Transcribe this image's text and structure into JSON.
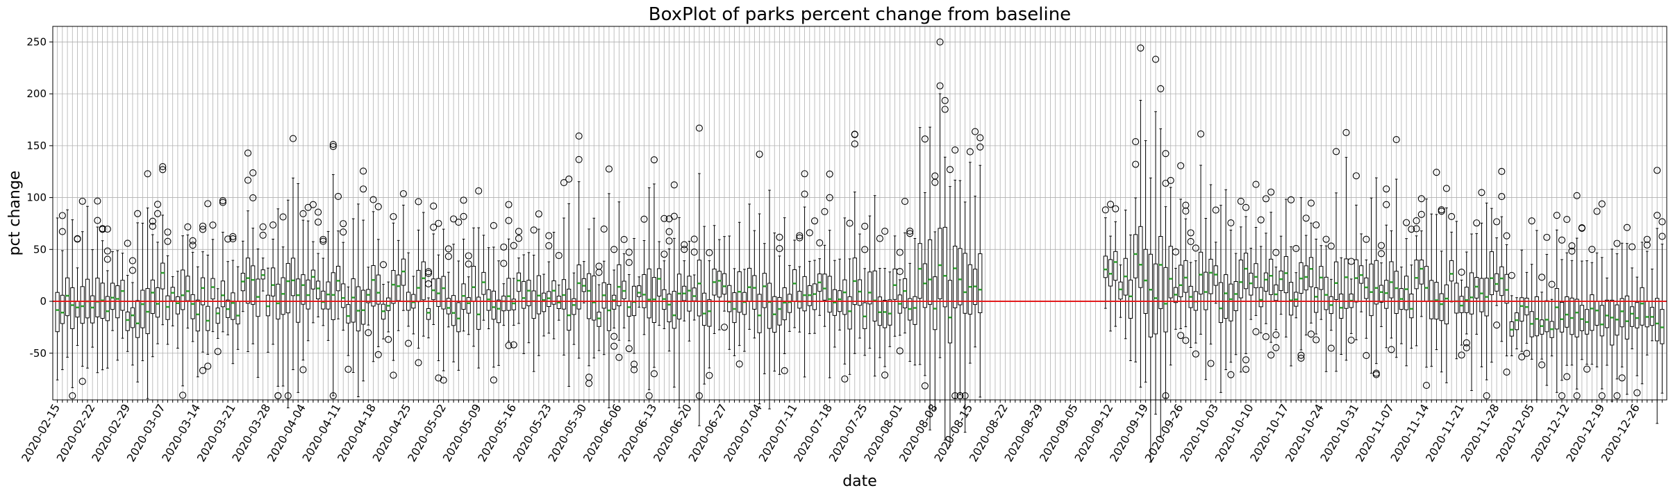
{
  "chart_data": {
    "type": "boxplot",
    "title": "BoxPlot of parks percent change from baseline",
    "xlabel": "date",
    "ylabel": "pct change",
    "ylim": [
      -95,
      265
    ],
    "yticks": [
      -50,
      0,
      50,
      100,
      150,
      200,
      250
    ],
    "x_start": "2020-02-15",
    "x_end": "2020-12-31",
    "x_tick_labels": [
      "2020-02-15",
      "2020-02-22",
      "2020-02-29",
      "2020-03-07",
      "2020-03-14",
      "2020-03-21",
      "2020-03-28",
      "2020-04-04",
      "2020-04-11",
      "2020-04-18",
      "2020-04-25",
      "2020-05-02",
      "2020-05-09",
      "2020-05-16",
      "2020-05-23",
      "2020-05-30",
      "2020-06-06",
      "2020-06-13",
      "2020-06-20",
      "2020-06-27",
      "2020-07-04",
      "2020-07-11",
      "2020-07-18",
      "2020-07-25",
      "2020-08-01",
      "2020-08-08",
      "2020-08-15",
      "2020-08-22",
      "2020-08-29",
      "2020-09-05",
      "2020-09-12",
      "2020-09-19",
      "2020-09-26",
      "2020-10-03",
      "2020-10-10",
      "2020-10-17",
      "2020-10-24",
      "2020-10-31",
      "2020-11-07",
      "2020-11-14",
      "2020-11-21",
      "2020-11-28",
      "2020-12-05",
      "2020-12-12",
      "2020-12-19",
      "2020-12-26"
    ],
    "missing_ranges": [
      [
        "2020-08-18",
        "2020-09-10"
      ]
    ],
    "baseline": 0,
    "grid": true,
    "colors": {
      "baseline": "#e31a1c",
      "median": "#2ca02c",
      "box": "#000000",
      "grid": "#b0b0b0"
    }
  }
}
